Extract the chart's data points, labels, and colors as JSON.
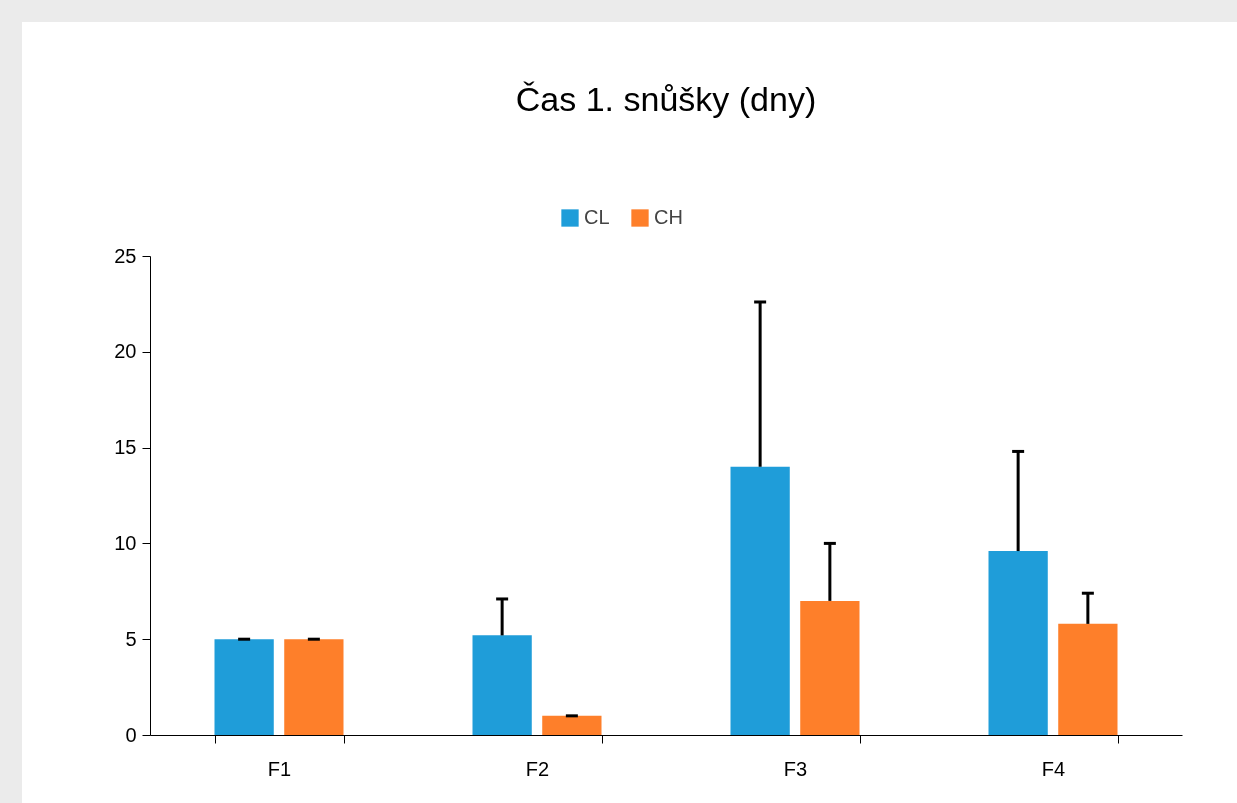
{
  "chart_data": {
    "type": "bar",
    "title": "Čas 1. snůšky (dny)",
    "categories": [
      "F1",
      "F2",
      "F3",
      "F4"
    ],
    "series": [
      {
        "name": "CL",
        "color": "#1f9dd9",
        "values": [
          5,
          5.2,
          14,
          9.6
        ],
        "errors": [
          [
            5,
            5
          ],
          [
            5.2,
            7.1
          ],
          [
            14,
            22.6
          ],
          [
            9.6,
            14.8
          ]
        ]
      },
      {
        "name": "CH",
        "color": "#fe7f2a",
        "values": [
          5,
          1,
          7,
          5.8
        ],
        "errors": [
          [
            5,
            5
          ],
          [
            1,
            1
          ],
          [
            7,
            10
          ],
          [
            5.8,
            7.4
          ]
        ]
      }
    ],
    "ylim": [
      0,
      25
    ],
    "yticks": [
      0,
      5,
      10,
      15,
      20,
      25
    ],
    "grid": false,
    "legend": "top"
  }
}
